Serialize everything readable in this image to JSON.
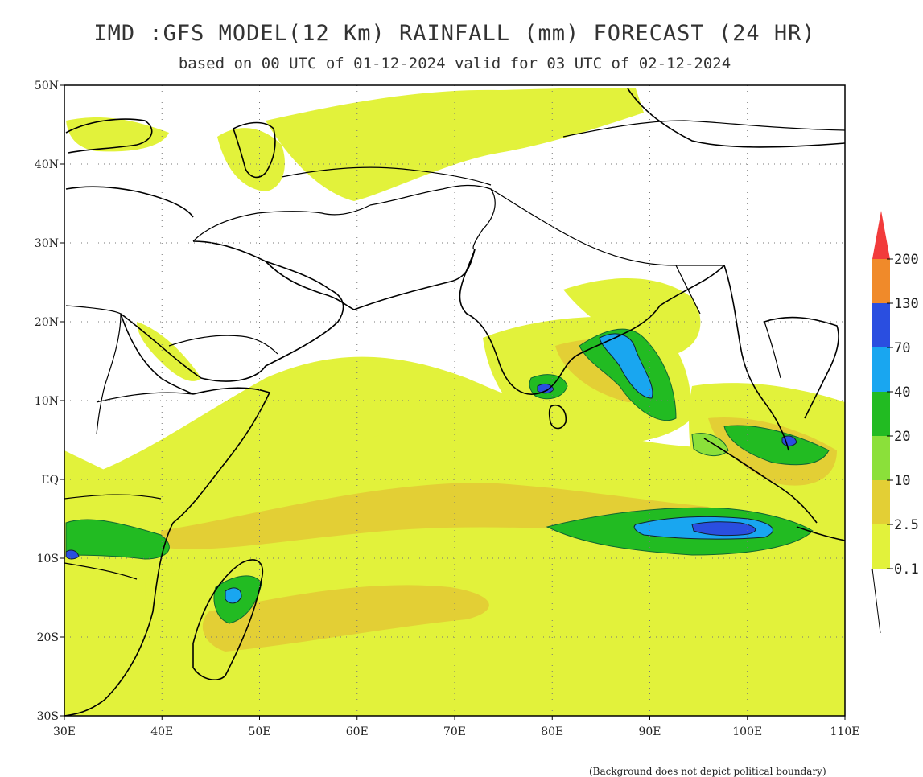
{
  "title": "IMD :GFS MODEL(12 Km) RAINFALL (mm) FORECAST (24 HR)",
  "subtitle": "based on 00 UTC of 01-12-2024 valid for 03 UTC of 02-12-2024",
  "axes": {
    "lat_labels": [
      "50N",
      "40N",
      "30N",
      "20N",
      "10N",
      "EQ",
      "10S",
      "20S",
      "30S"
    ],
    "lon_labels": [
      "30E",
      "40E",
      "50E",
      "60E",
      "70E",
      "80E",
      "90E",
      "100E",
      "110E"
    ],
    "lat_range": [
      -30,
      50
    ],
    "lon_range": [
      30,
      110
    ],
    "grid": "dotted"
  },
  "legend": {
    "labels": [
      "200",
      "130",
      "70",
      "40",
      "20",
      "10",
      "2.5",
      "0.1"
    ],
    "colors": [
      "#f23b3b",
      "#f08a2a",
      "#2a4ee0",
      "#19a6f0",
      "#22bb22",
      "#8be03a",
      "#e3cf35",
      "#e2f23b"
    ]
  },
  "colors": {
    "land": "#ffffff",
    "rain_0_1": "#e2f23b",
    "rain_2_5": "#e3cf35",
    "rain_10": "#8be03a",
    "rain_20": "#22bb22",
    "rain_40": "#19a6f0",
    "rain_70": "#2a4ee0"
  },
  "footnote": "(Background does not depict political boundary)"
}
